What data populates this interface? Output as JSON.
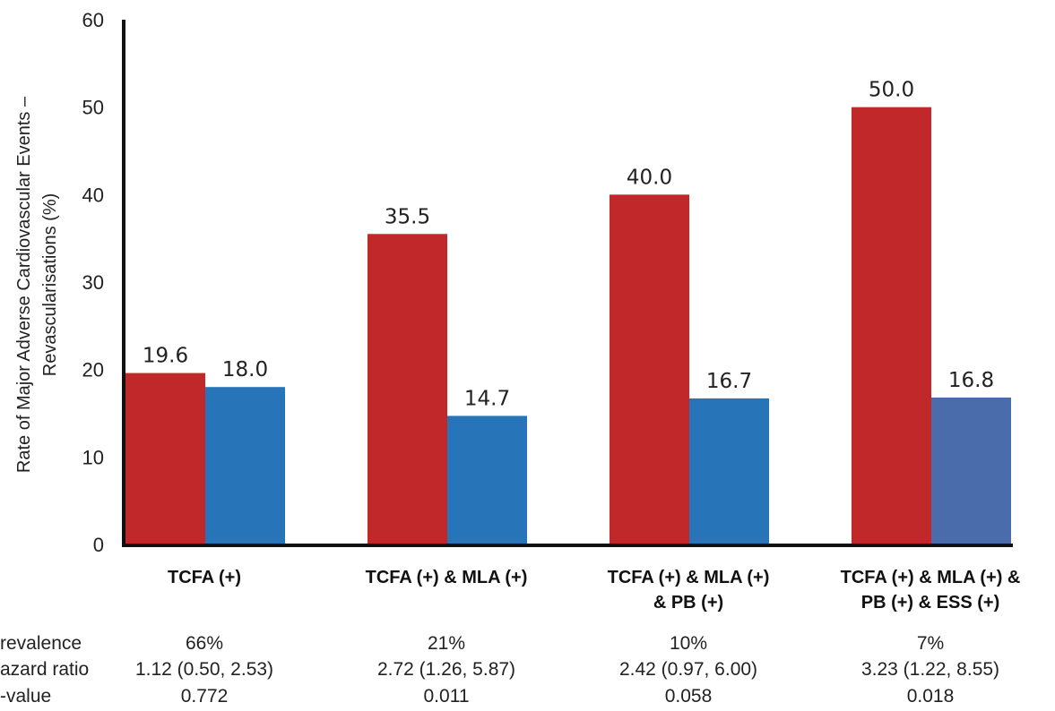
{
  "chart_data": {
    "type": "bar",
    "title": "",
    "ylabel_lines": [
      "Rate of Major Adverse Cardiovascular Events –",
      "Revascularisations (%)"
    ],
    "ylim": [
      0,
      60
    ],
    "yticks": [
      0,
      10,
      20,
      30,
      40,
      50,
      60
    ],
    "grid": false,
    "legend": "none",
    "categories": [
      [
        "TCFA (+)"
      ],
      [
        "TCFA (+) & MLA (+)"
      ],
      [
        "TCFA (+) & MLA (+)",
        "& PB (+)"
      ],
      [
        "TCFA (+) & MLA (+) &",
        "PB (+) & ESS (+)"
      ]
    ],
    "series": [
      {
        "values": [
          19.6,
          35.5,
          40.0,
          50.0
        ],
        "labels": [
          "19.6",
          "35.5",
          "40.0",
          "50.0"
        ],
        "colors": [
          "#c0282a",
          "#c0282a",
          "#c0282a",
          "#c0282a"
        ]
      },
      {
        "values": [
          18.0,
          14.7,
          16.7,
          16.8
        ],
        "labels": [
          "18.0",
          "14.7",
          "16.7",
          "16.8"
        ],
        "colors": [
          "#2874b8",
          "#2874b8",
          "#2874b8",
          "#4a6caa"
        ]
      }
    ],
    "stats_rows": [
      {
        "label": "revalence",
        "values": [
          "66%",
          "21%",
          "10%",
          "7%"
        ]
      },
      {
        "label": "azard ratio",
        "values": [
          "1.12 (0.50, 2.53)",
          "2.72 (1.26, 5.87)",
          "2.42 (0.97, 6.00)",
          "3.23 (1.22, 8.55)"
        ]
      },
      {
        "label": "-value",
        "values": [
          "0.772",
          "0.011",
          "0.058",
          "0.018"
        ]
      }
    ]
  }
}
